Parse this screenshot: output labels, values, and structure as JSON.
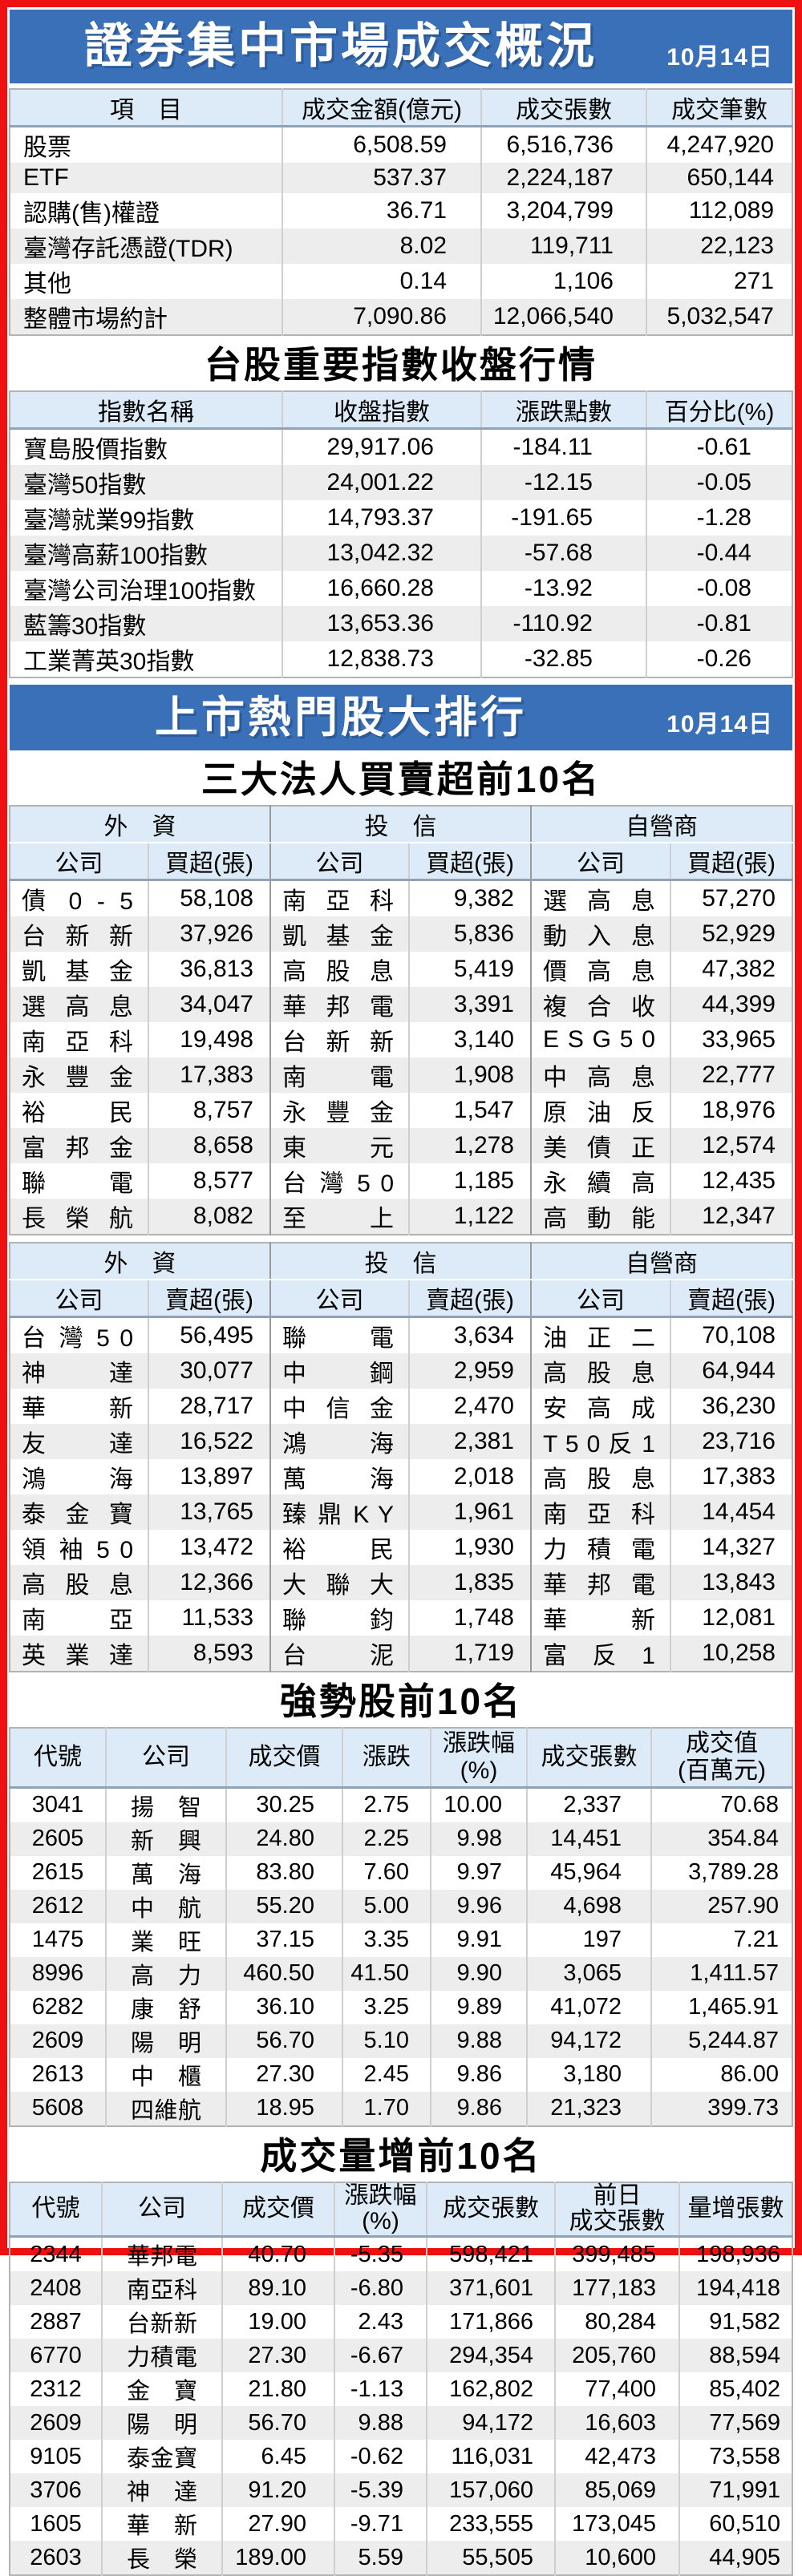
{
  "market_summary": {
    "title": "證券集中市場成交概況",
    "date": "10月14日",
    "columns": {
      "item": "項　目",
      "amount": "成交金額(億元)",
      "volume": "成交張數",
      "trades": "成交筆數"
    },
    "rows": [
      [
        "股票",
        "6,508.59",
        "6,516,736",
        "4,247,920"
      ],
      [
        "ETF",
        "537.37",
        "2,224,187",
        "650,144"
      ],
      [
        "認購(售)權證",
        "36.71",
        "3,204,799",
        "112,089"
      ],
      [
        "臺灣存託憑證(TDR)",
        "8.02",
        "119,711",
        "22,123"
      ],
      [
        "其他",
        "0.14",
        "1,106",
        "271"
      ],
      [
        "整體市場約計",
        "7,090.86",
        "12,066,540",
        "5,032,547"
      ]
    ]
  },
  "index_section": {
    "title": "台股重要指數收盤行情",
    "columns": {
      "name": "指數名稱",
      "close": "收盤指數",
      "change": "漲跌點數",
      "pct": "百分比(%)"
    },
    "rows": [
      [
        "寶島股價指數",
        "29,917.06",
        "-184.11",
        "-0.61"
      ],
      [
        "臺灣50指數",
        "24,001.22",
        "-12.15",
        "-0.05"
      ],
      [
        "臺灣就業99指數",
        "14,793.37",
        "-191.65",
        "-1.28"
      ],
      [
        "臺灣高薪100指數",
        "13,042.32",
        "-57.68",
        "-0.44"
      ],
      [
        "臺灣公司治理100指數",
        "16,660.28",
        "-13.92",
        "-0.08"
      ],
      [
        "藍籌30指數",
        "13,653.36",
        "-110.92",
        "-0.81"
      ],
      [
        "工業菁英30指數",
        "12,838.73",
        "-32.85",
        "-0.26"
      ]
    ]
  },
  "hot_stocks_banner": {
    "title": "上市熱門股大排行",
    "date": "10月14日"
  },
  "institutional": {
    "title": "三大法人買賣超前10名",
    "groups": [
      "外　資",
      "投　信",
      "自營商"
    ],
    "col_company": "公司",
    "buy": {
      "col_value": "買超(張)",
      "rows": [
        [
          "債 0 - 5",
          "58,108",
          "南 亞 科",
          "9,382",
          "選 高 息",
          "57,270"
        ],
        [
          "台 新 新",
          "37,926",
          "凱 基 金",
          "5,836",
          "動 入 息",
          "52,929"
        ],
        [
          "凱 基 金",
          "36,813",
          "高 股 息",
          "5,419",
          "價 高 息",
          "47,382"
        ],
        [
          "選 高 息",
          "34,047",
          "華 邦 電",
          "3,391",
          "複 合 收",
          "44,399"
        ],
        [
          "南 亞 科",
          "19,498",
          "台 新 新",
          "3,140",
          "E S G 5 0",
          "33,965"
        ],
        [
          "永 豐 金",
          "17,383",
          "南 電",
          "1,908",
          "中 高 息",
          "22,777"
        ],
        [
          "裕 民",
          "8,757",
          "永 豐 金",
          "1,547",
          "原 油 反",
          "18,976"
        ],
        [
          "富 邦 金",
          "8,658",
          "東 元",
          "1,278",
          "美 債 正",
          "12,574"
        ],
        [
          "聯 電",
          "8,577",
          "台 灣 5 0",
          "1,185",
          "永 續 高",
          "12,435"
        ],
        [
          "長 榮 航",
          "8,082",
          "至 上",
          "1,122",
          "高 動 能",
          "12,347"
        ]
      ]
    },
    "sell": {
      "col_value": "賣超(張)",
      "rows": [
        [
          "台 灣 5 0",
          "56,495",
          "聯 電",
          "3,634",
          "油 正 二",
          "70,108"
        ],
        [
          "神 達",
          "30,077",
          "中 鋼",
          "2,959",
          "高 股 息",
          "64,944"
        ],
        [
          "華 新",
          "28,717",
          "中 信 金",
          "2,470",
          "安 高 成",
          "36,230"
        ],
        [
          "友 達",
          "16,522",
          "鴻 海",
          "2,381",
          "T 5 0 反 1",
          "23,716"
        ],
        [
          "鴻 海",
          "13,897",
          "萬 海",
          "2,018",
          "高 股 息",
          "17,383"
        ],
        [
          "泰 金 寶",
          "13,765",
          "臻 鼎 K Y",
          "1,961",
          "南 亞 科",
          "14,454"
        ],
        [
          "領 袖 5 0",
          "13,472",
          "裕 民",
          "1,930",
          "力 積 電",
          "14,327"
        ],
        [
          "高 股 息",
          "12,366",
          "大 聯 大",
          "1,835",
          "華 邦 電",
          "13,843"
        ],
        [
          "南 亞",
          "11,533",
          "聯 鈞",
          "1,748",
          "華 新",
          "12,081"
        ],
        [
          "英 業 達",
          "8,593",
          "台 泥",
          "1,719",
          "富 反 1",
          "10,258"
        ]
      ]
    }
  },
  "strong_stocks": {
    "title": "強勢股前10名",
    "columns": {
      "code": "代號",
      "company": "公司",
      "price": "成交價",
      "change": "漲跌",
      "change_pct": "漲跌幅\n(%)",
      "volume": "成交張數",
      "value": "成交值\n(百萬元)"
    },
    "rows": [
      [
        "3041",
        "揚智",
        "30.25",
        "2.75",
        "10.00",
        "2,337",
        "70.68"
      ],
      [
        "2605",
        "新興",
        "24.80",
        "2.25",
        "9.98",
        "14,451",
        "354.84"
      ],
      [
        "2615",
        "萬海",
        "83.80",
        "7.60",
        "9.97",
        "45,964",
        "3,789.28"
      ],
      [
        "2612",
        "中航",
        "55.20",
        "5.00",
        "9.96",
        "4,698",
        "257.90"
      ],
      [
        "1475",
        "業旺",
        "37.15",
        "3.35",
        "9.91",
        "197",
        "7.21"
      ],
      [
        "8996",
        "高力",
        "460.50",
        "41.50",
        "9.90",
        "3,065",
        "1,411.57"
      ],
      [
        "6282",
        "康舒",
        "36.10",
        "3.25",
        "9.89",
        "41,072",
        "1,465.91"
      ],
      [
        "2609",
        "陽明",
        "56.70",
        "5.10",
        "9.88",
        "94,172",
        "5,244.87"
      ],
      [
        "2613",
        "中櫃",
        "27.30",
        "2.45",
        "9.86",
        "3,180",
        "86.00"
      ],
      [
        "5608",
        "四維航",
        "18.95",
        "1.70",
        "9.86",
        "21,323",
        "399.73"
      ]
    ]
  },
  "volume_gainers": {
    "title": "成交量增前10名",
    "columns": {
      "code": "代號",
      "company": "公司",
      "price": "成交價",
      "change_pct": "漲跌幅\n(%)",
      "volume": "成交張數",
      "prev_volume": "前日\n成交張數",
      "volume_increase": "量增張數"
    },
    "rows": [
      [
        "2344",
        "華邦電",
        "40.70",
        "-5.35",
        "598,421",
        "399,485",
        "198,936"
      ],
      [
        "2408",
        "南亞科",
        "89.10",
        "-6.80",
        "371,601",
        "177,183",
        "194,418"
      ],
      [
        "2887",
        "台新新",
        "19.00",
        "2.43",
        "171,866",
        "80,284",
        "91,582"
      ],
      [
        "6770",
        "力積電",
        "27.30",
        "-6.67",
        "294,354",
        "205,760",
        "88,594"
      ],
      [
        "2312",
        "金寶",
        "21.80",
        "-1.13",
        "162,802",
        "77,400",
        "85,402"
      ],
      [
        "2609",
        "陽明",
        "56.70",
        "9.88",
        "94,172",
        "16,603",
        "77,569"
      ],
      [
        "9105",
        "泰金寶",
        "6.45",
        "-0.62",
        "116,031",
        "42,473",
        "73,558"
      ],
      [
        "3706",
        "神達",
        "91.20",
        "-5.39",
        "157,060",
        "85,069",
        "71,991"
      ],
      [
        "1605",
        "華新",
        "27.90",
        "-9.71",
        "233,555",
        "173,045",
        "60,510"
      ],
      [
        "2603",
        "長榮",
        "189.00",
        "5.59",
        "55,505",
        "10,600",
        "44,905"
      ]
    ]
  }
}
